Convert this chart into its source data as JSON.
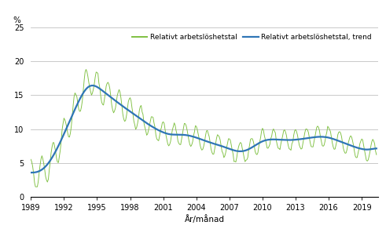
{
  "title": "",
  "ylabel": "%",
  "xlabel": "År/månad",
  "legend_raw": [
    "Relativt arbetslöshetstal",
    "Relativt arbetslöshetstal, trend"
  ],
  "line_color_raw": "#7fc041",
  "line_color_trend": "#2e75b6",
  "ylim": [
    0,
    25
  ],
  "yticks": [
    0,
    5,
    10,
    15,
    20,
    25
  ],
  "xticks": [
    1989,
    1992,
    1995,
    1998,
    2001,
    2004,
    2007,
    2010,
    2013,
    2016,
    2019
  ],
  "grid_color": "#c0c0c0",
  "background_color": "#ffffff"
}
